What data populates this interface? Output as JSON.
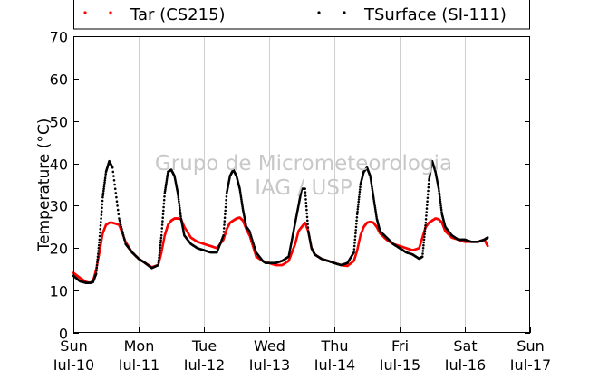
{
  "chart_data": {
    "type": "scatter",
    "title": "",
    "xlabel": "",
    "ylabel": "Temperature (°C)",
    "ylim": [
      0,
      70
    ],
    "yticks": [
      0,
      10,
      20,
      30,
      40,
      50,
      60,
      70
    ],
    "xlim": [
      0,
      7
    ],
    "xunits": "days since Sun Jul-10 00:00",
    "xticks": [
      {
        "day": "Sun",
        "date": "Jul-10"
      },
      {
        "day": "Mon",
        "date": "Jul-11"
      },
      {
        "day": "Tue",
        "date": "Jul-12"
      },
      {
        "day": "Wed",
        "date": "Jul-13"
      },
      {
        "day": "Thu",
        "date": "Jul-14"
      },
      {
        "day": "Fri",
        "date": "Jul-15"
      },
      {
        "day": "Sat",
        "date": "Jul-16"
      },
      {
        "day": "Sun",
        "date": "Jul-17"
      }
    ],
    "grid": "vertical",
    "legend_position": "top",
    "watermark": [
      "Grupo de Micrometeorologia",
      "IAG / USP"
    ],
    "series": [
      {
        "name": "Tar (CS215)",
        "color": "#ff0000",
        "x": [
          0.0,
          0.1,
          0.2,
          0.25,
          0.3,
          0.35,
          0.4,
          0.45,
          0.5,
          0.55,
          0.6,
          0.7,
          0.8,
          0.9,
          1.0,
          1.1,
          1.2,
          1.3,
          1.35,
          1.4,
          1.45,
          1.5,
          1.55,
          1.6,
          1.65,
          1.7,
          1.8,
          1.9,
          2.0,
          2.1,
          2.2,
          2.3,
          2.35,
          2.4,
          2.45,
          2.5,
          2.55,
          2.6,
          2.65,
          2.7,
          2.8,
          2.9,
          2.95,
          3.0,
          3.1,
          3.2,
          3.3,
          3.35,
          3.4,
          3.45,
          3.5,
          3.55,
          3.6,
          3.65,
          3.7,
          3.8,
          3.9,
          4.0,
          4.1,
          4.2,
          4.3,
          4.35,
          4.4,
          4.45,
          4.5,
          4.55,
          4.6,
          4.65,
          4.7,
          4.8,
          4.9,
          5.0,
          5.1,
          5.2,
          5.3,
          5.35,
          5.4,
          5.45,
          5.5,
          5.55,
          5.6,
          5.65,
          5.7,
          5.8,
          5.9,
          6.0,
          6.1,
          6.2,
          6.3,
          6.35
        ],
        "y": [
          14.2,
          13,
          12,
          11.8,
          12.2,
          15,
          19,
          23.5,
          25.5,
          26,
          26,
          25.5,
          21.5,
          19,
          17.5,
          16.5,
          15.5,
          16,
          19,
          23,
          25.5,
          26.5,
          27,
          27,
          26.8,
          25,
          22.5,
          21.5,
          21,
          20.5,
          20,
          22,
          24.5,
          26,
          26.5,
          27,
          27.2,
          26.5,
          24.5,
          23,
          18,
          17,
          16.5,
          16.5,
          16,
          16,
          17,
          19,
          21,
          24,
          25,
          26,
          24,
          20,
          18.5,
          17.5,
          17,
          16.5,
          16,
          15.8,
          17,
          19.5,
          23,
          25,
          26,
          26.2,
          26,
          25,
          23.5,
          22,
          21,
          20.5,
          20,
          19.5,
          20,
          22.5,
          25,
          26,
          26.5,
          27,
          26.8,
          26,
          24,
          22.5,
          22,
          21.5,
          21.5,
          21.5,
          22,
          20.5
        ]
      },
      {
        "name": "TSurface (SI-111)",
        "color": "#000000",
        "x": [
          0.0,
          0.1,
          0.2,
          0.25,
          0.3,
          0.35,
          0.4,
          0.45,
          0.5,
          0.55,
          0.6,
          0.7,
          0.8,
          0.9,
          1.0,
          1.1,
          1.2,
          1.3,
          1.35,
          1.4,
          1.45,
          1.5,
          1.55,
          1.6,
          1.65,
          1.7,
          1.8,
          1.9,
          2.0,
          2.1,
          2.2,
          2.3,
          2.35,
          2.4,
          2.45,
          2.5,
          2.55,
          2.6,
          2.65,
          2.7,
          2.8,
          2.9,
          2.95,
          3.0,
          3.1,
          3.2,
          3.3,
          3.35,
          3.4,
          3.45,
          3.5,
          3.55,
          3.6,
          3.65,
          3.7,
          3.8,
          3.9,
          4.0,
          4.1,
          4.2,
          4.3,
          4.35,
          4.4,
          4.45,
          4.5,
          4.55,
          4.6,
          4.65,
          4.7,
          4.8,
          4.9,
          5.0,
          5.1,
          5.2,
          5.3,
          5.35,
          5.4,
          5.45,
          5.5,
          5.55,
          5.6,
          5.65,
          5.7,
          5.8,
          5.9,
          6.0,
          6.1,
          6.2,
          6.3,
          6.35
        ],
        "y": [
          13.5,
          12.2,
          11.8,
          11.8,
          12,
          14,
          22,
          32,
          38,
          40.5,
          39,
          27,
          21,
          19,
          17.5,
          16.5,
          15.3,
          16,
          23,
          33,
          38,
          38.5,
          37,
          33,
          27,
          23,
          21,
          20,
          19.5,
          19,
          19,
          23,
          33,
          37,
          38.5,
          37,
          34,
          29,
          25,
          24,
          19,
          17,
          16.5,
          16.5,
          16.5,
          17,
          18,
          22,
          26,
          30,
          34,
          34,
          24,
          20,
          18.5,
          17.5,
          17,
          16.5,
          16,
          16.5,
          19,
          28,
          35,
          38,
          39,
          37,
          32,
          27,
          24,
          22.5,
          21,
          20,
          19,
          18.5,
          17.5,
          18,
          26,
          36,
          40.5,
          38,
          34,
          28,
          25,
          23,
          22,
          22,
          21.5,
          21.5,
          22,
          22.5
        ]
      }
    ]
  }
}
